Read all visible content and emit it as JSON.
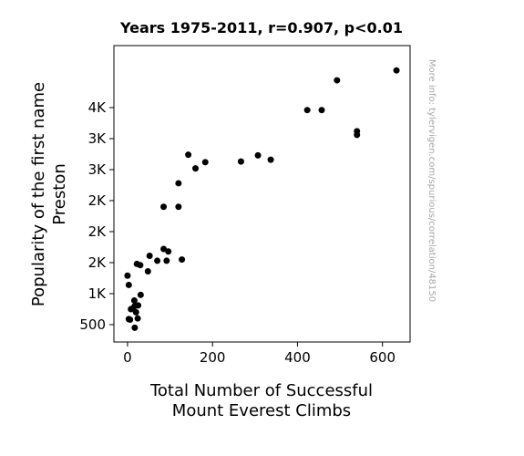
{
  "chart_data": {
    "type": "scatter",
    "title": "Years 1975-2011, r=0.907, p<0.01",
    "xlabel_lines": [
      "Total Number of Successful",
      "Mount Everest Climbs"
    ],
    "ylabel_lines": [
      "Popularity of the first name",
      "Preston"
    ],
    "xlim": [
      -32,
      665
    ],
    "ylim": [
      220,
      5000
    ],
    "x_ticks": [
      {
        "value": 0,
        "label": "0"
      },
      {
        "value": 200,
        "label": "200"
      },
      {
        "value": 400,
        "label": "400"
      },
      {
        "value": 600,
        "label": "600"
      }
    ],
    "y_ticks": [
      {
        "value": 500,
        "label": "500"
      },
      {
        "value": 1000,
        "label": "1K"
      },
      {
        "value": 1500,
        "label": "2K"
      },
      {
        "value": 2000,
        "label": "2K"
      },
      {
        "value": 2500,
        "label": "2K"
      },
      {
        "value": 3000,
        "label": "3K"
      },
      {
        "value": 3500,
        "label": "3K"
      },
      {
        "value": 4000,
        "label": "4K"
      }
    ],
    "grid": false,
    "color": "#000000",
    "points": [
      {
        "x": 0,
        "y": 1290
      },
      {
        "x": 3,
        "y": 1140
      },
      {
        "x": 3,
        "y": 590
      },
      {
        "x": 6,
        "y": 580
      },
      {
        "x": 8,
        "y": 750
      },
      {
        "x": 12,
        "y": 760
      },
      {
        "x": 16,
        "y": 890
      },
      {
        "x": 17,
        "y": 800
      },
      {
        "x": 17,
        "y": 450
      },
      {
        "x": 20,
        "y": 700
      },
      {
        "x": 22,
        "y": 1480
      },
      {
        "x": 24,
        "y": 600
      },
      {
        "x": 25,
        "y": 810
      },
      {
        "x": 30,
        "y": 1460
      },
      {
        "x": 31,
        "y": 980
      },
      {
        "x": 48,
        "y": 1360
      },
      {
        "x": 52,
        "y": 1610
      },
      {
        "x": 70,
        "y": 1530
      },
      {
        "x": 85,
        "y": 2400
      },
      {
        "x": 85,
        "y": 1720
      },
      {
        "x": 92,
        "y": 1530
      },
      {
        "x": 96,
        "y": 1680
      },
      {
        "x": 120,
        "y": 2400
      },
      {
        "x": 120,
        "y": 2780
      },
      {
        "x": 128,
        "y": 1550
      },
      {
        "x": 143,
        "y": 3240
      },
      {
        "x": 160,
        "y": 3020
      },
      {
        "x": 183,
        "y": 3120
      },
      {
        "x": 267,
        "y": 3130
      },
      {
        "x": 307,
        "y": 3230
      },
      {
        "x": 337,
        "y": 3160
      },
      {
        "x": 423,
        "y": 3960
      },
      {
        "x": 457,
        "y": 3960
      },
      {
        "x": 493,
        "y": 4440
      },
      {
        "x": 540,
        "y": 3620
      },
      {
        "x": 540,
        "y": 3560
      },
      {
        "x": 633,
        "y": 4600
      }
    ]
  },
  "watermark": "More info: tylervigen.com/spurious/correlation/48150"
}
